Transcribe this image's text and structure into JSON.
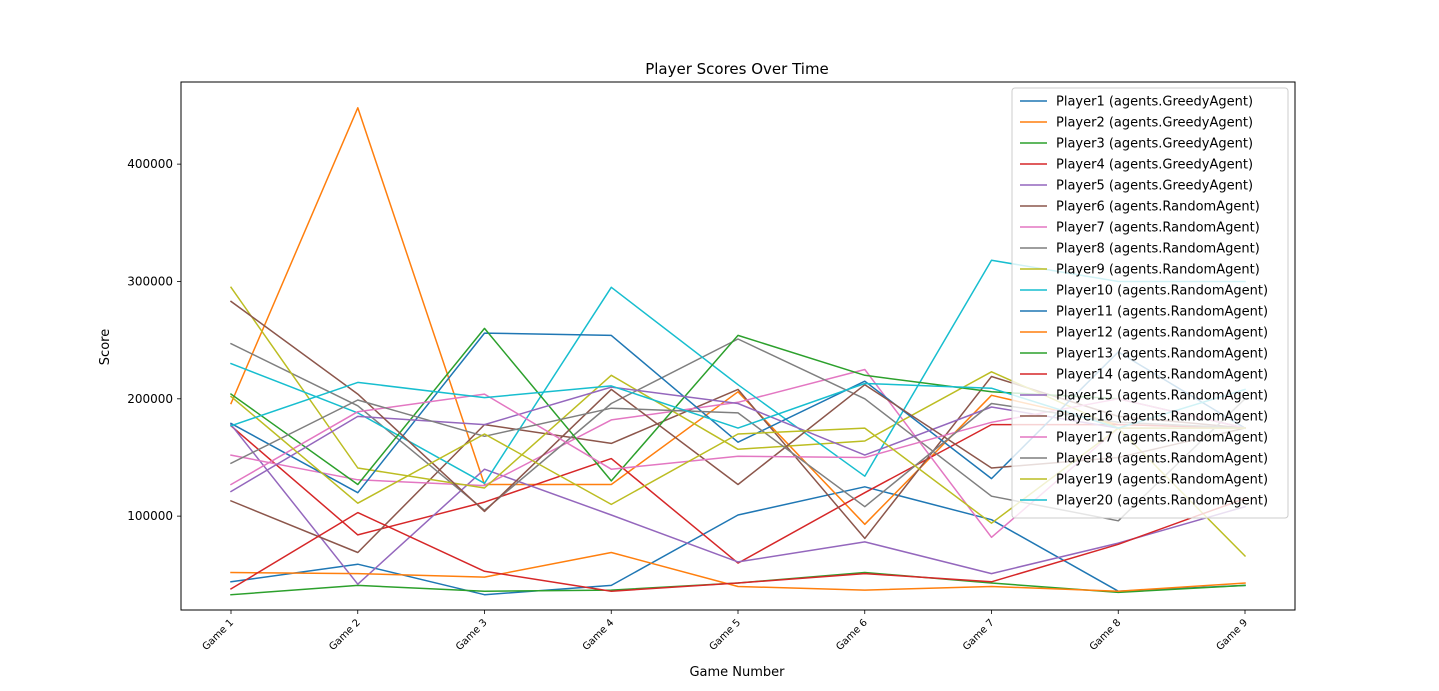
{
  "chart_data": {
    "type": "line",
    "title": "Player Scores Over Time",
    "xlabel": "Game Number",
    "ylabel": "Score",
    "categories": [
      "Game 1",
      "Game 2",
      "Game 3",
      "Game 4",
      "Game 5",
      "Game 6",
      "Game 7",
      "Game 8",
      "Game 9"
    ],
    "ylim": [
      20000,
      470000
    ],
    "yticks": [
      100000,
      200000,
      300000,
      400000
    ],
    "ytick_labels": [
      "100000",
      "200000",
      "300000",
      "400000"
    ],
    "grid": false,
    "legend_position": "upper right",
    "series": [
      {
        "name": "Player1 (agents.GreedyAgent)",
        "color": "#1f77b4",
        "values": [
          44000,
          59000,
          33000,
          41000,
          101000,
          125000,
          97000,
          36000,
          41000
        ]
      },
      {
        "name": "Player2 (agents.GreedyAgent)",
        "color": "#ff7f0e",
        "values": [
          196000,
          448000,
          127000,
          127000,
          206000,
          93000,
          203000,
          178000,
          175000
        ]
      },
      {
        "name": "Player3 (agents.GreedyAgent)",
        "color": "#2ca02c",
        "values": [
          33000,
          41000,
          36000,
          37000,
          43000,
          52000,
          43000,
          35000,
          41000
        ]
      },
      {
        "name": "Player4 (agents.GreedyAgent)",
        "color": "#d62728",
        "values": [
          177000,
          84000,
          112000,
          149000,
          60000,
          120000,
          178000,
          178000,
          175000
        ]
      },
      {
        "name": "Player5 (agents.GreedyAgent)",
        "color": "#9467bd",
        "values": [
          178000,
          42000,
          140000,
          101000,
          61000,
          78000,
          51000,
          77000,
          108000
        ]
      },
      {
        "name": "Player6 (agents.RandomAgent)",
        "color": "#8c564b",
        "values": [
          113000,
          69000,
          178000,
          162000,
          208000,
          81000,
          219000,
          185000,
          175000
        ]
      },
      {
        "name": "Player7 (agents.RandomAgent)",
        "color": "#e377c2",
        "values": [
          152000,
          131000,
          126000,
          182000,
          197000,
          225000,
          82000,
          175000,
          175000
        ]
      },
      {
        "name": "Player8 (agents.RandomAgent)",
        "color": "#7f7f7f",
        "values": [
          247000,
          194000,
          105000,
          196000,
          251000,
          200000,
          117000,
          96000,
          200000
        ]
      },
      {
        "name": "Player9 (agents.RandomAgent)",
        "color": "#bcbd22",
        "values": [
          295000,
          141000,
          124000,
          220000,
          157000,
          164000,
          223000,
          175000,
          66000
        ]
      },
      {
        "name": "Player10 (agents.RandomAgent)",
        "color": "#17becf",
        "values": [
          230000,
          188000,
          128000,
          295000,
          212000,
          134000,
          318000,
          300000,
          300000
        ]
      },
      {
        "name": "Player11 (agents.RandomAgent)",
        "color": "#1f77b4",
        "values": [
          179000,
          120000,
          256000,
          254000,
          163000,
          215000,
          132000,
          240000,
          175000
        ]
      },
      {
        "name": "Player12 (agents.RandomAgent)",
        "color": "#ff7f0e",
        "values": [
          52000,
          51000,
          48000,
          69000,
          40000,
          37000,
          40000,
          36000,
          43000
        ]
      },
      {
        "name": "Player13 (agents.RandomAgent)",
        "color": "#2ca02c",
        "values": [
          204000,
          127000,
          260000,
          130000,
          254000,
          220000,
          206000,
          200000,
          175000
        ]
      },
      {
        "name": "Player14 (agents.RandomAgent)",
        "color": "#d62728",
        "values": [
          38000,
          103000,
          53000,
          36000,
          43000,
          51000,
          44000,
          76000,
          115000
        ]
      },
      {
        "name": "Player15 (agents.RandomAgent)",
        "color": "#9467bd",
        "values": [
          121000,
          185000,
          178000,
          210000,
          196000,
          152000,
          193000,
          175000,
          175000
        ]
      },
      {
        "name": "Player16 (agents.RandomAgent)",
        "color": "#8c564b",
        "values": [
          283000,
          204000,
          104000,
          208000,
          127000,
          212000,
          141000,
          150000,
          175000
        ]
      },
      {
        "name": "Player17 (agents.RandomAgent)",
        "color": "#e377c2",
        "values": [
          127000,
          189000,
          204000,
          140000,
          151000,
          150000,
          180000,
          200000,
          175000
        ]
      },
      {
        "name": "Player18 (agents.RandomAgent)",
        "color": "#7f7f7f",
        "values": [
          145000,
          199000,
          168000,
          192000,
          188000,
          108000,
          196000,
          180000,
          175000
        ]
      },
      {
        "name": "Player19 (agents.RandomAgent)",
        "color": "#bcbd22",
        "values": [
          202000,
          111000,
          170000,
          110000,
          170000,
          175000,
          94000,
          175000,
          175000
        ]
      },
      {
        "name": "Player20 (agents.RandomAgent)",
        "color": "#17becf",
        "values": [
          177000,
          214000,
          201000,
          211000,
          175000,
          213000,
          209000,
          175000,
          208000
        ]
      }
    ]
  }
}
